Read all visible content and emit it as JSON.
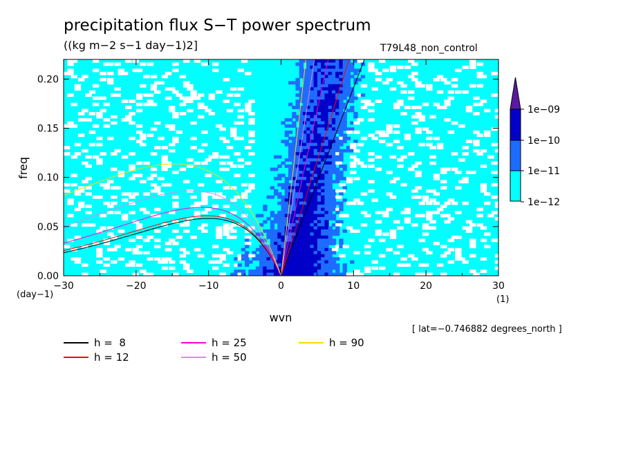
{
  "chart_data": {
    "type": "heatmap",
    "title": "precipitation flux S−T power spectrum",
    "units": "((kg m−2 s−1 day−1)2]",
    "run_label": "T79L48_non_control",
    "annotation": "[ lat=−0.746882 degrees_north ]",
    "xlabel": "wvn",
    "ylabel": "freq",
    "x_unit_label": "(1)",
    "y_unit_label": "(day−1)",
    "xlim": [
      -30,
      30
    ],
    "ylim": [
      0,
      0.22
    ],
    "x_ticks": [
      -30,
      -20,
      -10,
      0,
      10,
      20,
      30
    ],
    "x_tick_labels": [
      "−30",
      "−20",
      "−10",
      "0",
      "10",
      "20",
      "30"
    ],
    "y_ticks": [
      0,
      0.05,
      0.1,
      0.15,
      0.2
    ],
    "y_tick_labels": [
      "0.00",
      "0.05",
      "0.10",
      "0.15",
      "0.20"
    ],
    "colorbar": {
      "levels": [
        "1e−12",
        "1e−11",
        "1e−10",
        "1e−09"
      ],
      "colors": [
        "#00ffff",
        "#1e6cff",
        "#0000c8",
        "#5a1aa0"
      ],
      "extend": "max"
    },
    "field_colors": {
      "below": "#ffffff",
      "band1": "#00ffff",
      "band2": "#1e6cff",
      "band3": "#0000c8"
    },
    "dispersion_curves": [
      {
        "name": "h =  8",
        "h": 8,
        "color": "#000000"
      },
      {
        "name": "h = 12",
        "h": 12,
        "color": "#ff0000"
      },
      {
        "name": "h = 25",
        "h": 25,
        "color": "#ff00cc"
      },
      {
        "name": "h = 50",
        "h": 50,
        "color": "#dd88ee"
      },
      {
        "name": "h = 90",
        "h": 90,
        "color": "#ffd800"
      }
    ]
  }
}
